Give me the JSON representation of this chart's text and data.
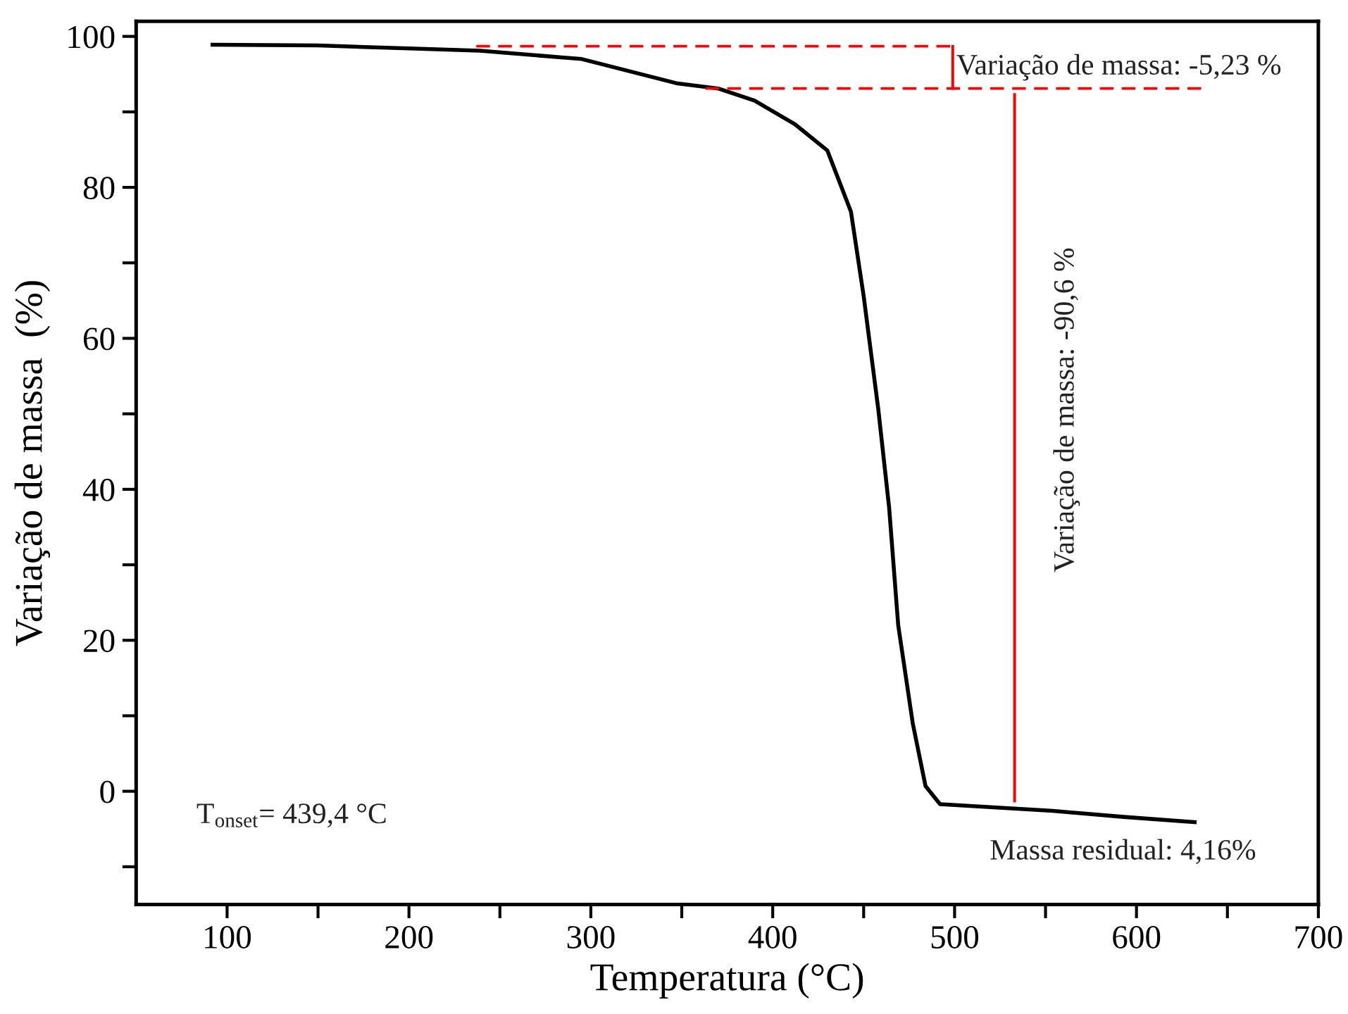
{
  "chart_data": {
    "type": "line",
    "xlabel": "Temperatura (°C)",
    "ylabel": "Variação de massa  (%)",
    "xlim": [
      50,
      700
    ],
    "ylim": [
      -15,
      102
    ],
    "xticks": [
      100,
      {
        "value": 150,
        "label": null
      },
      200,
      {
        "value": 250,
        "label": null
      },
      300,
      {
        "value": 350,
        "label": null
      },
      400,
      {
        "value": 450,
        "label": null
      },
      500,
      {
        "value": 550,
        "label": null
      },
      600,
      {
        "value": 650,
        "label": null
      },
      700
    ],
    "yticks": [
      {
        "value": -10,
        "label": null
      },
      0,
      {
        "value": 10,
        "label": null
      },
      20,
      {
        "value": 30,
        "label": null
      },
      40,
      {
        "value": 50,
        "label": null
      },
      60,
      {
        "value": 70,
        "label": null
      },
      80,
      {
        "value": 90,
        "label": null
      },
      100
    ],
    "grid": false,
    "legend": false,
    "marker": "none",
    "series": [
      {
        "color": "#000000",
        "line_style": "solid",
        "x": [
          92,
          150,
          200,
          239,
          285,
          295,
          347,
          370,
          390,
          412,
          430,
          443,
          450,
          458,
          464,
          469,
          477,
          484,
          492,
          554,
          593,
          632
        ],
        "values": [
          98.9,
          98.8,
          98.4,
          98.1,
          97.2,
          97.0,
          93.8,
          93.1,
          91.5,
          88.4,
          84.9,
          76.8,
          65.6,
          50.7,
          37.6,
          22.0,
          9.0,
          0.7,
          -1.7,
          -2.6,
          -3.4,
          -4.1
        ]
      },
      {
        "color": "#ff0000",
        "line_style": "dashed",
        "x": [
          237,
          499
        ],
        "values": [
          98.7,
          98.7
        ]
      },
      {
        "color": "#ff0000",
        "line_style": "dashed",
        "x": [
          363,
          638
        ],
        "values": [
          93.1,
          93.1
        ]
      },
      {
        "color": "#ff0000",
        "line_style": "solid",
        "x": [
          499,
          499
        ],
        "values": [
          98.7,
          93.1
        ]
      },
      {
        "color": "#ff0000",
        "line_style": "solid",
        "x": [
          533,
          533
        ],
        "values": [
          92.3,
          -1.3
        ]
      }
    ],
    "annotations": [
      {
        "text": "Variação de massa: -5,23 %",
        "x": 501,
        "y": 95.9
      },
      "Variação de massa: -90,6 %",
      "T$_{onset}$= 439,4 °C",
      "Massa residual: 4,16%"
    ]
  }
}
